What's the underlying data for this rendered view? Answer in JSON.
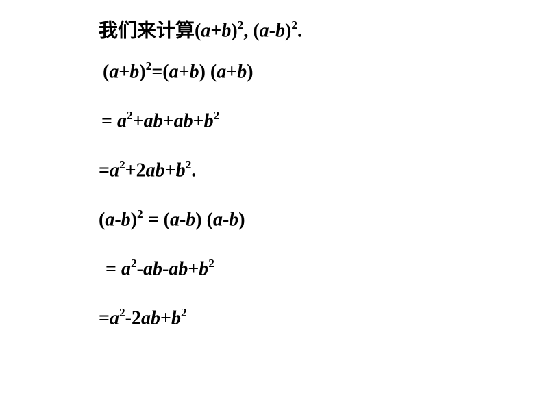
{
  "page": {
    "background_color": "#ffffff",
    "text_color": "#000000",
    "font_family": "Times New Roman",
    "cn_font_family": "SimSun",
    "font_size_pt": 21,
    "font_weight": "bold"
  },
  "lines": {
    "intro_cn": "我们来计算",
    "intro_expr1_open": "(",
    "intro_a1": "a",
    "intro_plus1": "+",
    "intro_b1": "b",
    "intro_close1": ")",
    "intro_sup1": "2",
    "intro_comma": ", (",
    "intro_a2": "a",
    "intro_minus2": "-",
    "intro_b2": "b",
    "intro_close2": ")",
    "intro_sup2": "2",
    "intro_period": ".",
    "l2_open1": "(",
    "l2_a1": "a",
    "l2_plus1": "+",
    "l2_b1": "b",
    "l2_close1": ")",
    "l2_sup1": "2",
    "l2_eq1": "=(",
    "l2_a2": "a",
    "l2_plus2": "+",
    "l2_b2": "b",
    "l2_close2": ") (",
    "l2_a3": "a",
    "l2_plus3": "+",
    "l2_b3": "b",
    "l2_close3": ")",
    "l3_eq": "= ",
    "l3_a1": "a",
    "l3_sup1": "2",
    "l3_plus1": "+",
    "l3_a2": "a",
    "l3_b2": "b",
    "l3_plus2": "+",
    "l3_a3": "a",
    "l3_b3": "b",
    "l3_plus3": "+",
    "l3_b4": "b",
    "l3_sup2": "2",
    "l4_eq": "=",
    "l4_a1": "a",
    "l4_sup1": "2",
    "l4_plus1": "+2",
    "l4_a2": "a",
    "l4_b2": "b",
    "l4_plus2": "+",
    "l4_b3": "b",
    "l4_sup2": "2",
    "l4_period": ".",
    "l5_open1": "(",
    "l5_a1": "a",
    "l5_minus1": "-",
    "l5_b1": "b",
    "l5_close1": ")",
    "l5_sup1": "2",
    "l5_eq": " = (",
    "l5_a2": "a",
    "l5_minus2": "-",
    "l5_b2": "b",
    "l5_close2": ") (",
    "l5_a3": "a",
    "l5_minus3": "-",
    "l5_b3": "b",
    "l5_close3": ")",
    "l6_eq": " = ",
    "l6_a1": "a",
    "l6_sup1": "2",
    "l6_minus1": "-",
    "l6_a2": "a",
    "l6_b2": "b",
    "l6_minus2": "-",
    "l6_a3": "a",
    "l6_b3": "b",
    "l6_plus": "+",
    "l6_b4": "b",
    "l6_sup2": "2",
    "l7_eq": "=",
    "l7_a1": "a",
    "l7_sup1": "2",
    "l7_minus1": "-2",
    "l7_a2": "a",
    "l7_b2": "b",
    "l7_plus": "+",
    "l7_b3": "b",
    "l7_sup2": "2"
  }
}
